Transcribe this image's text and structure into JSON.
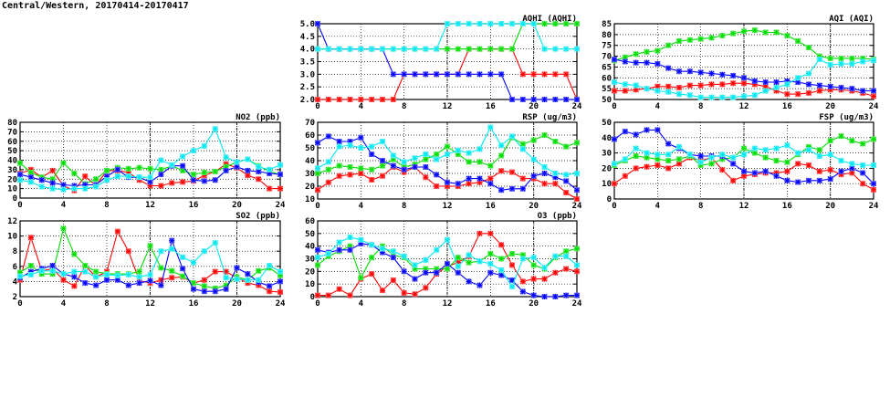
{
  "title": "Central/Western, 20170414-20170417",
  "chart_data": [
    {
      "type": "line",
      "title": "AQHI (AQHI)",
      "xlim": [
        0,
        24
      ],
      "ylim": [
        2,
        5
      ],
      "xticks": [
        "0",
        "4",
        "8",
        "12",
        "16",
        "20",
        "24"
      ],
      "yticks": [
        "2.0",
        "2.5",
        "3.0",
        "3.5",
        "4.0",
        "4.5",
        "5.0"
      ],
      "series": [
        {
          "color": "#ff0000",
          "values": [
            2,
            2,
            2,
            2,
            2,
            2,
            2,
            2,
            3,
            3,
            3,
            3,
            3,
            3,
            4,
            4,
            4,
            4,
            4,
            3,
            3,
            3,
            3,
            3,
            2
          ]
        },
        {
          "color": "#00dd00",
          "values": [
            4,
            4,
            4,
            4,
            4,
            4,
            4,
            4,
            4,
            4,
            4,
            4,
            4,
            4,
            4,
            4,
            4,
            4,
            4,
            5,
            5,
            5,
            5,
            5,
            5
          ]
        },
        {
          "color": "#0000ff",
          "values": [
            5,
            4,
            4,
            4,
            4,
            4,
            4,
            3,
            3,
            3,
            3,
            3,
            3,
            3,
            3,
            3,
            3,
            3,
            2,
            2,
            2,
            2,
            2,
            2,
            2
          ]
        },
        {
          "color": "#00e8f0",
          "values": [
            4,
            4,
            4,
            4,
            4,
            4,
            4,
            4,
            4,
            4,
            4,
            4,
            5,
            5,
            5,
            5,
            5,
            5,
            5,
            5,
            5,
            4,
            4,
            4,
            4
          ]
        }
      ]
    },
    {
      "type": "line",
      "title": "AQI (AQI)",
      "xlim": [
        0,
        24
      ],
      "ylim": [
        50,
        85
      ],
      "xticks": [
        "0",
        "4",
        "8",
        "12",
        "16",
        "20",
        "24"
      ],
      "yticks": [
        "50",
        "55",
        "60",
        "65",
        "70",
        "75",
        "80",
        "85"
      ],
      "series": [
        {
          "color": "#ff0000",
          "values": [
            54,
            54,
            54.5,
            55,
            56,
            56,
            55.5,
            56.5,
            56.5,
            57,
            57,
            57.5,
            57.5,
            57,
            56,
            54,
            52.5,
            52.5,
            53,
            54,
            54.5,
            54.5,
            54,
            53,
            51.5
          ]
        },
        {
          "color": "#00dd00",
          "values": [
            68,
            69.5,
            71,
            72,
            72.5,
            75,
            77,
            77.5,
            78,
            78.5,
            79.5,
            80.5,
            81.5,
            82,
            81,
            81,
            79.5,
            77,
            74,
            70,
            69,
            69,
            69,
            69,
            68.5
          ]
        },
        {
          "color": "#0000ff",
          "values": [
            68.5,
            67.5,
            67,
            67,
            66.5,
            64.5,
            63,
            63,
            62.5,
            62,
            61.5,
            61,
            60,
            58.5,
            58,
            58,
            58.5,
            58,
            57,
            56.5,
            56,
            55.5,
            55,
            54,
            54
          ]
        },
        {
          "color": "#00e8f0",
          "values": [
            58,
            57,
            56.5,
            55,
            54,
            53.5,
            52.5,
            52,
            51,
            51,
            51,
            51,
            51.5,
            52,
            54,
            55.5,
            57,
            60,
            62,
            68.5,
            66,
            66.5,
            66.5,
            67.5,
            68
          ]
        }
      ]
    },
    {
      "type": "line",
      "title": "NO2 (ppb)",
      "xlim": [
        0,
        24
      ],
      "ylim": [
        0,
        80
      ],
      "xticks": [
        "0",
        "4",
        "8",
        "12",
        "16",
        "20",
        "24"
      ],
      "yticks": [
        "0",
        "10",
        "20",
        "30",
        "40",
        "50",
        "60",
        "70",
        "80"
      ],
      "series": [
        {
          "color": "#ff0000",
          "values": [
            26,
            30,
            22,
            29,
            13,
            8,
            23,
            13,
            29,
            29,
            27,
            19,
            13,
            13,
            16,
            17,
            18,
            24,
            28,
            36,
            32,
            24,
            20,
            10,
            10
          ]
        },
        {
          "color": "#00dd00",
          "values": [
            37,
            27,
            22,
            20,
            37,
            26,
            15,
            20,
            29,
            32,
            31,
            32,
            31,
            30,
            34,
            29,
            25,
            27,
            28,
            33,
            38,
            41,
            34,
            28,
            25
          ]
        },
        {
          "color": "#0000ff",
          "values": [
            25,
            22,
            19,
            16,
            14,
            13,
            14,
            14,
            23,
            30,
            22,
            22,
            17,
            25,
            34,
            34,
            19,
            18,
            19,
            29,
            33,
            29,
            28,
            26,
            25
          ]
        },
        {
          "color": "#00e8f0",
          "values": [
            19,
            17,
            12,
            10,
            9,
            10,
            10,
            12,
            19,
            23,
            23,
            22,
            22,
            40,
            35,
            44,
            50,
            55,
            73,
            43,
            38,
            41,
            33,
            30,
            35
          ]
        }
      ]
    },
    {
      "type": "line",
      "title": "RSP (ug/m3)",
      "xlim": [
        0,
        24
      ],
      "ylim": [
        10,
        70
      ],
      "xticks": [
        "0",
        "4",
        "8",
        "12",
        "16",
        "20",
        "24"
      ],
      "yticks": [
        "10",
        "20",
        "30",
        "40",
        "50",
        "60",
        "70"
      ],
      "series": [
        {
          "color": "#ff0000",
          "values": [
            17,
            23,
            28,
            29,
            30,
            25,
            28,
            35,
            31,
            35,
            27,
            20,
            20,
            20,
            22,
            23,
            26,
            32,
            31,
            26,
            26,
            22,
            22,
            15,
            10
          ]
        },
        {
          "color": "#00dd00",
          "values": [
            30,
            33,
            36,
            35,
            34,
            33,
            36,
            41,
            35,
            37,
            41,
            45,
            51,
            45,
            39,
            39,
            36,
            44,
            58,
            53,
            56,
            60,
            55,
            51,
            54
          ]
        },
        {
          "color": "#0000ff",
          "values": [
            54,
            59,
            55,
            55,
            58,
            45,
            40,
            36,
            33,
            35,
            35,
            29,
            23,
            22,
            26,
            26,
            22,
            17,
            18,
            18,
            28,
            30,
            27,
            24,
            17
          ]
        },
        {
          "color": "#00e8f0",
          "values": [
            34,
            39,
            51,
            52,
            50,
            51,
            55,
            44,
            39,
            42,
            45,
            41,
            45,
            48,
            46,
            49,
            66,
            52,
            59,
            49,
            41,
            35,
            30,
            29,
            30
          ]
        }
      ]
    },
    {
      "type": "line",
      "title": "FSP (ug/m3)",
      "xlim": [
        0,
        24
      ],
      "ylim": [
        0,
        50
      ],
      "xticks": [
        "0",
        "4",
        "8",
        "12",
        "16",
        "20",
        "24"
      ],
      "yticks": [
        "0",
        "10",
        "20",
        "30",
        "40",
        "50"
      ],
      "series": [
        {
          "color": "#ff0000",
          "values": [
            10,
            15,
            20,
            21,
            22,
            20,
            23,
            27,
            25,
            27,
            19,
            12,
            15,
            16,
            17,
            17,
            18,
            23,
            22,
            18,
            19,
            16,
            17,
            10,
            6
          ]
        },
        {
          "color": "#00dd00",
          "values": [
            22,
            25,
            28,
            27,
            26,
            25,
            26,
            28,
            22,
            23,
            26,
            27,
            33,
            30,
            27,
            25,
            24,
            29,
            34,
            32,
            38,
            41,
            38,
            36,
            39
          ]
        },
        {
          "color": "#0000ff",
          "values": [
            39,
            44,
            42,
            45,
            45,
            36,
            33,
            29,
            28,
            28,
            28,
            23,
            18,
            17,
            18,
            15,
            12,
            11,
            12,
            12,
            13,
            18,
            20,
            17,
            10
          ]
        },
        {
          "color": "#00e8f0",
          "values": [
            23,
            26,
            33,
            30,
            29,
            29,
            34,
            29,
            24,
            27,
            29,
            27,
            29,
            33,
            32,
            33,
            35,
            30,
            32,
            28,
            29,
            25,
            23,
            22,
            22
          ]
        }
      ]
    },
    {
      "type": "line",
      "title": "SO2 (ppb)",
      "xlim": [
        0,
        24
      ],
      "ylim": [
        2,
        12
      ],
      "xticks": [
        "0",
        "4",
        "8",
        "12",
        "16",
        "20",
        "24"
      ],
      "yticks": [
        "2",
        "4",
        "6",
        "8",
        "10",
        "12"
      ],
      "series": [
        {
          "color": "#ff0000",
          "values": [
            4.2,
            9.8,
            5.4,
            5.7,
            4.2,
            3.4,
            6.1,
            4.6,
            5.3,
            10.6,
            8,
            4.1,
            3.8,
            4.2,
            4.5,
            4.6,
            3.8,
            4.2,
            5.3,
            5.3,
            4.5,
            3.8,
            3.5,
            2.7,
            2.6
          ]
        },
        {
          "color": "#00dd00",
          "values": [
            5.2,
            6.1,
            5,
            5,
            11,
            7.6,
            6.1,
            5.3,
            5,
            5,
            5,
            5.3,
            8.7,
            5.8,
            5.4,
            4.7,
            3.8,
            3.4,
            3.1,
            3.5,
            4.6,
            4.2,
            5.4,
            5.8,
            4.8
          ]
        },
        {
          "color": "#0000ff",
          "values": [
            4.5,
            5.3,
            5.7,
            6.1,
            5,
            4.6,
            3.8,
            3.5,
            4.2,
            4.2,
            3.5,
            3.8,
            4.1,
            3.5,
            9.4,
            5.7,
            3,
            2.7,
            2.7,
            3,
            5.8,
            5,
            3.9,
            3.4,
            4
          ]
        },
        {
          "color": "#00e8f0",
          "values": [
            4.7,
            4.9,
            5.4,
            5.4,
            5,
            5.3,
            5.3,
            4.6,
            4.9,
            4.8,
            4.9,
            4.6,
            4.9,
            8,
            8.3,
            7.2,
            6.5,
            8,
            9.1,
            4.5,
            4.3,
            4.2,
            4.2,
            6.1,
            5.3
          ]
        }
      ]
    },
    {
      "type": "line",
      "title": "O3 (ppb)",
      "xlim": [
        0,
        24
      ],
      "ylim": [
        0,
        60
      ],
      "xticks": [
        "0",
        "4",
        "8",
        "12",
        "16",
        "20",
        "24"
      ],
      "yticks": [
        "0",
        "10",
        "20",
        "30",
        "40",
        "50",
        "60"
      ],
      "series": [
        {
          "color": "#ff0000",
          "values": [
            1,
            1,
            6,
            1,
            14,
            18,
            5,
            13,
            3,
            2,
            7,
            18,
            24,
            27,
            32,
            50,
            50,
            41,
            25,
            12,
            14,
            14,
            19,
            22,
            20
          ]
        },
        {
          "color": "#00dd00",
          "values": [
            25,
            32,
            36,
            40,
            15,
            31,
            40,
            33,
            31,
            22,
            22,
            22,
            22,
            31,
            27,
            28,
            34,
            30,
            34,
            33,
            25,
            22,
            31,
            36,
            38
          ]
        },
        {
          "color": "#0000ff",
          "values": [
            37,
            35,
            37,
            37,
            42,
            41,
            35,
            31,
            20,
            14,
            19,
            19,
            26,
            19,
            12,
            9,
            19,
            17,
            13,
            4,
            1,
            0,
            0,
            1,
            1
          ]
        },
        {
          "color": "#00e8f0",
          "values": [
            31,
            34,
            43,
            47,
            45,
            41,
            38,
            36,
            32,
            25,
            29,
            37,
            45,
            24,
            33,
            28,
            26,
            21,
            8,
            30,
            31,
            23,
            32,
            32,
            25
          ]
        }
      ]
    }
  ]
}
